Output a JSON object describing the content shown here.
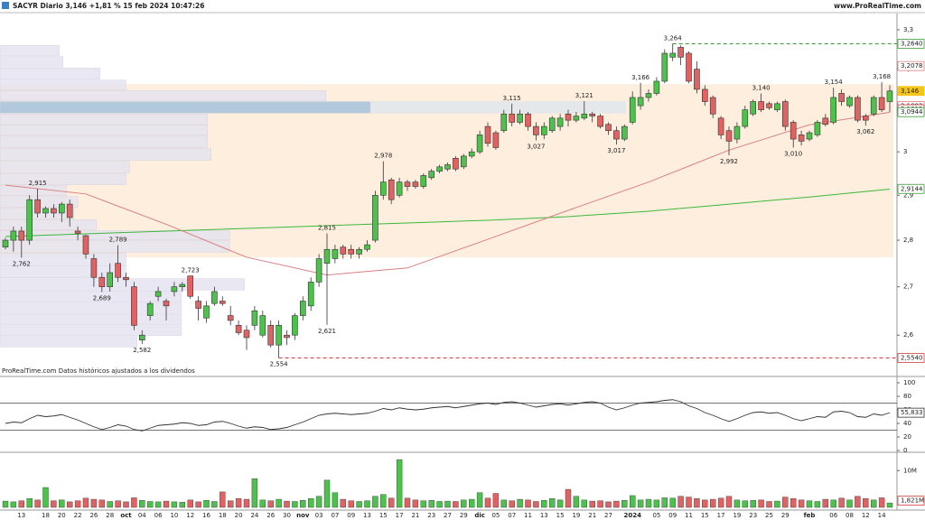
{
  "chart_data": {
    "type": "candlestick",
    "title": "SACYR Diario 3,146 +1,81 % 15 feb 2024 10:47:26",
    "source": "www.ProRealTime.com",
    "note": "ProRealTime.com  Datos históricos ajustados a los dividendos",
    "log_scale": true,
    "up_color": "#4cc24c",
    "down_color": "#e06262",
    "ylim": [
      2.521,
      3.342
    ],
    "yticks": [
      {
        "value": 2.6,
        "label": "2,6"
      },
      {
        "value": 2.7,
        "label": "2,7"
      },
      {
        "value": 2.8,
        "label": "2,8"
      },
      {
        "value": 2.9,
        "label": "2,9"
      },
      3,
      {
        "value": 3.1,
        "label": "3,1"
      },
      {
        "value": 3.2,
        "label": "3,2"
      },
      {
        "value": 3.3,
        "label": "3,3"
      }
    ],
    "categories": [
      null,
      null,
      "13",
      null,
      null,
      "18",
      null,
      "20",
      null,
      "22",
      null,
      "26",
      null,
      "28",
      null,
      "oct",
      null,
      "04",
      null,
      "06",
      null,
      "10",
      null,
      "12",
      null,
      "16",
      null,
      "18",
      null,
      "20",
      null,
      "24",
      null,
      "26",
      null,
      "30",
      null,
      "nov",
      null,
      "03",
      null,
      "07",
      null,
      "09",
      null,
      "13",
      null,
      "15",
      null,
      "17",
      null,
      "21",
      null,
      "23",
      null,
      "27",
      null,
      "29",
      null,
      "dic",
      null,
      "05",
      null,
      "07",
      null,
      "11",
      null,
      "13",
      null,
      "15",
      null,
      "19",
      null,
      "21",
      null,
      "27",
      null,
      null,
      "2024",
      null,
      null,
      "05",
      null,
      "09",
      null,
      "11",
      null,
      "15",
      null,
      "17",
      null,
      "19",
      null,
      "23",
      null,
      "25",
      null,
      "29",
      null,
      null,
      "feb",
      null,
      null,
      "06",
      null,
      "08",
      null,
      "12",
      null,
      "14",
      null
    ],
    "candles": [
      [
        2.785,
        2.805,
        2.78,
        2.8
      ],
      [
        2.8,
        2.83,
        2.775,
        2.82
      ],
      [
        2.82,
        2.83,
        2.762,
        2.8
      ],
      [
        2.8,
        2.9,
        2.79,
        2.89
      ],
      [
        2.89,
        2.915,
        2.85,
        2.86
      ],
      [
        2.86,
        2.875,
        2.85,
        2.87
      ],
      [
        2.87,
        2.88,
        2.85,
        2.86
      ],
      [
        2.86,
        2.885,
        2.84,
        2.88
      ],
      [
        2.88,
        2.89,
        2.83,
        2.85
      ],
      [
        2.82,
        2.83,
        2.8,
        2.815
      ],
      [
        2.81,
        2.812,
        2.76,
        2.77
      ],
      [
        2.76,
        2.77,
        2.7,
        2.72
      ],
      [
        2.72,
        2.73,
        2.689,
        2.7
      ],
      [
        2.7,
        2.75,
        2.69,
        2.73
      ],
      [
        2.75,
        2.789,
        2.71,
        2.72
      ],
      [
        2.72,
        2.73,
        2.7,
        2.715
      ],
      [
        2.7,
        2.71,
        2.61,
        2.62
      ],
      [
        2.59,
        2.61,
        2.582,
        2.6
      ],
      [
        2.64,
        2.67,
        2.63,
        2.665
      ],
      [
        2.68,
        2.7,
        2.67,
        2.69
      ],
      [
        2.67,
        2.675,
        2.63,
        2.66
      ],
      [
        2.69,
        2.71,
        2.68,
        2.7
      ],
      [
        2.7,
        2.71,
        2.69,
        2.705
      ],
      [
        2.723,
        2.723,
        2.675,
        2.68
      ],
      [
        2.67,
        2.68,
        2.63,
        2.655
      ],
      [
        2.635,
        2.67,
        2.625,
        2.66
      ],
      [
        2.665,
        2.7,
        2.66,
        2.69
      ],
      [
        2.67,
        2.68,
        2.66,
        2.665
      ],
      [
        2.64,
        2.66,
        2.62,
        2.63
      ],
      [
        2.62,
        2.63,
        2.6,
        2.605
      ],
      [
        2.61,
        2.62,
        2.57,
        2.595
      ],
      [
        2.62,
        2.66,
        2.61,
        2.65
      ],
      [
        2.6,
        2.65,
        2.595,
        2.64
      ],
      [
        2.62,
        2.63,
        2.575,
        2.58
      ],
      [
        2.58,
        2.63,
        2.554,
        2.62
      ],
      [
        2.6,
        2.61,
        2.58,
        2.595
      ],
      [
        2.6,
        2.645,
        2.59,
        2.64
      ],
      [
        2.64,
        2.68,
        2.63,
        2.67
      ],
      [
        2.66,
        2.72,
        2.65,
        2.71
      ],
      [
        2.71,
        2.77,
        2.7,
        2.76
      ],
      [
        2.75,
        2.815,
        2.621,
        2.78
      ],
      [
        2.76,
        2.79,
        2.75,
        2.78
      ],
      [
        2.785,
        2.79,
        2.76,
        2.77
      ],
      [
        2.78,
        2.79,
        2.76,
        2.77
      ],
      [
        2.77,
        2.785,
        2.76,
        2.78
      ],
      [
        2.78,
        2.8,
        2.775,
        2.79
      ],
      [
        2.8,
        2.91,
        2.795,
        2.9
      ],
      [
        2.9,
        2.978,
        2.89,
        2.93
      ],
      [
        2.935,
        2.94,
        2.88,
        2.89
      ],
      [
        2.9,
        2.94,
        2.895,
        2.93
      ],
      [
        2.93,
        2.935,
        2.91,
        2.92
      ],
      [
        2.93,
        2.935,
        2.915,
        2.92
      ],
      [
        2.92,
        2.95,
        2.915,
        2.945
      ],
      [
        2.94,
        2.96,
        2.935,
        2.955
      ],
      [
        2.955,
        2.97,
        2.95,
        2.965
      ],
      [
        2.96,
        2.975,
        2.955,
        2.97
      ],
      [
        2.985,
        2.99,
        2.955,
        2.96
      ],
      [
        2.965,
        2.995,
        2.96,
        2.99
      ],
      [
        2.99,
        3.008,
        2.985,
        3.0
      ],
      [
        3.0,
        3.05,
        2.995,
        3.04
      ],
      [
        3.06,
        3.07,
        3.012,
        3.02
      ],
      [
        3.045,
        3.05,
        3.005,
        3.01
      ],
      [
        3.05,
        3.1,
        3.045,
        3.09
      ],
      [
        3.09,
        3.115,
        3.06,
        3.07
      ],
      [
        3.07,
        3.1,
        3.065,
        3.09
      ],
      [
        3.09,
        3.095,
        3.05,
        3.06
      ],
      [
        3.06,
        3.07,
        3.027,
        3.04
      ],
      [
        3.04,
        3.07,
        3.03,
        3.06
      ],
      [
        3.05,
        3.085,
        3.045,
        3.08
      ],
      [
        3.06,
        3.09,
        3.05,
        3.08
      ],
      [
        3.09,
        3.1,
        3.06,
        3.075
      ],
      [
        3.075,
        3.095,
        3.07,
        3.085
      ],
      [
        3.08,
        3.121,
        3.075,
        3.09
      ],
      [
        3.09,
        3.095,
        3.07,
        3.085
      ],
      [
        3.085,
        3.09,
        3.055,
        3.06
      ],
      [
        3.065,
        3.07,
        3.04,
        3.05
      ],
      [
        3.05,
        3.06,
        3.017,
        3.03
      ],
      [
        3.03,
        3.065,
        3.025,
        3.06
      ],
      [
        3.07,
        3.145,
        3.065,
        3.13
      ],
      [
        3.11,
        3.166,
        3.1,
        3.13
      ],
      [
        3.13,
        3.15,
        3.12,
        3.14
      ],
      [
        3.14,
        3.18,
        3.135,
        3.17
      ],
      [
        3.17,
        3.25,
        3.165,
        3.24
      ],
      [
        3.23,
        3.264,
        3.22,
        3.24
      ],
      [
        3.255,
        3.26,
        3.21,
        3.23
      ],
      [
        3.24,
        3.245,
        3.165,
        3.17
      ],
      [
        3.2,
        3.22,
        3.14,
        3.15
      ],
      [
        3.15,
        3.16,
        3.11,
        3.12
      ],
      [
        3.13,
        3.135,
        3.08,
        3.09
      ],
      [
        3.08,
        3.085,
        3.03,
        3.04
      ],
      [
        3.05,
        3.06,
        2.992,
        3.025
      ],
      [
        3.03,
        3.07,
        3.02,
        3.06
      ],
      [
        3.06,
        3.11,
        3.055,
        3.1
      ],
      [
        3.09,
        3.125,
        3.085,
        3.12
      ],
      [
        3.12,
        3.14,
        3.095,
        3.1
      ],
      [
        3.115,
        3.12,
        3.1,
        3.105
      ],
      [
        3.1,
        3.12,
        3.095,
        3.115
      ],
      [
        3.12,
        3.125,
        3.05,
        3.06
      ],
      [
        3.07,
        3.075,
        3.01,
        3.03
      ],
      [
        3.04,
        3.05,
        3.015,
        3.025
      ],
      [
        3.03,
        3.05,
        3.025,
        3.045
      ],
      [
        3.04,
        3.075,
        3.035,
        3.07
      ],
      [
        3.08,
        3.09,
        3.06,
        3.065
      ],
      [
        3.07,
        3.154,
        3.065,
        3.13
      ],
      [
        3.14,
        3.15,
        3.11,
        3.12
      ],
      [
        3.11,
        3.135,
        3.105,
        3.13
      ],
      [
        3.13,
        3.135,
        3.07,
        3.075
      ],
      [
        3.085,
        3.09,
        3.062,
        3.075
      ],
      [
        3.09,
        3.135,
        3.085,
        3.13
      ],
      [
        3.13,
        3.168,
        3.095,
        3.1
      ],
      [
        3.12,
        3.16,
        3.095,
        3.146
      ]
    ],
    "extremes": [
      {
        "value": 2.915,
        "label": "2,915"
      },
      {
        "value": 2.762,
        "label": "2,762"
      },
      {
        "value": 2.789,
        "label": "2,789"
      },
      {
        "value": 2.689,
        "label": "2,689"
      },
      {
        "value": 2.723,
        "label": "2,723"
      },
      {
        "value": 2.582,
        "label": "2,582"
      },
      {
        "value": 2.554,
        "label": "2,554"
      },
      {
        "value": 2.815,
        "label": "2,815"
      },
      {
        "value": 2.621,
        "label": "2,621"
      },
      {
        "value": 2.978,
        "label": "2,978"
      },
      {
        "value": 3.115,
        "label": "3,115"
      },
      {
        "value": 3.027,
        "label": "3,027"
      },
      {
        "value": 3.121,
        "label": "3,121"
      },
      {
        "value": 3.017,
        "label": "3,017"
      },
      {
        "value": 3.166,
        "label": "3,166"
      },
      {
        "value": 3.264,
        "label": "3,264"
      },
      {
        "value": 2.992,
        "label": "2,992"
      },
      {
        "value": 3.14,
        "label": "3,140"
      },
      {
        "value": 3.01,
        "label": "3,010"
      },
      {
        "value": 3.154,
        "label": "3,154"
      },
      {
        "value": 3.062,
        "label": "3,062"
      },
      {
        "value": 3.168,
        "label": "3,168"
      }
    ],
    "price_markers": [
      {
        "value": 3.264,
        "label": "3,2640",
        "color": "#3a9a3a",
        "line": "dashed"
      },
      {
        "value": 3.2078,
        "label": "3,2078",
        "color": "#e08080"
      },
      {
        "value": 3.146,
        "label": "3,146",
        "color": "#f5c518"
      },
      {
        "value": 3.1093,
        "label": "3,1093",
        "color": "#e08080"
      },
      {
        "value": 3.1013,
        "label": "3,1013",
        "color": "#c04040"
      },
      {
        "value": 3.0944,
        "label": "3,0944",
        "color": "#3a9a3a"
      },
      {
        "value": 2.9144,
        "label": "2,9144",
        "color": "#3a9a3a"
      },
      {
        "value": 2.554,
        "label": "2,5540",
        "color": "#d04040",
        "line": "dashed"
      }
    ],
    "moving_averages": [
      {
        "color": "#3cb83c",
        "values": [
          2.808,
          2.814,
          2.82,
          2.826,
          2.832,
          2.838,
          2.844,
          2.852,
          2.864,
          2.88,
          2.896,
          2.914
        ]
      },
      {
        "color": "#d98080",
        "values": [
          2.923,
          2.903,
          2.835,
          2.763,
          2.725,
          2.74,
          2.802,
          2.866,
          2.93,
          3.004,
          3.064,
          3.094
        ]
      }
    ],
    "value_area": {
      "range": [
        2.763,
        3.163
      ],
      "color": "#fdeedd"
    },
    "volume_profile": {
      "color": "#e6e4f0",
      "poc_color": "#a9c4d8",
      "edges": [
        3.261,
        3.233,
        3.204,
        3.174,
        3.148,
        3.121,
        3.091,
        3.065,
        3.039,
        3.009,
        2.979,
        2.95,
        2.923,
        2.898,
        2.872,
        2.846,
        2.822,
        2.8,
        2.773,
        2.743,
        2.718,
        2.692,
        2.667,
        2.643,
        2.62,
        2.598,
        2.575
      ],
      "volumes": [
        16,
        17,
        27,
        34,
        88,
        100,
        56,
        56,
        56,
        57,
        35,
        34,
        18,
        21,
        20,
        26,
        62,
        62,
        34,
        34,
        66,
        49,
        49,
        49,
        49,
        37
      ]
    },
    "rsi": {
      "color": "#333333",
      "ylim": [
        0,
        100
      ],
      "yticks": [
        0,
        20,
        40,
        60,
        80,
        100
      ],
      "levels": [
        70,
        30
      ],
      "value_label": "55,833",
      "values": [
        40,
        42,
        41,
        47,
        52,
        50,
        51,
        53,
        49,
        45,
        40,
        35,
        31,
        34,
        38,
        36,
        31,
        29,
        33,
        37,
        38,
        39,
        41,
        40,
        37,
        38,
        42,
        43,
        40,
        36,
        33,
        35,
        34,
        31,
        32,
        34,
        38,
        42,
        47,
        52,
        54,
        55,
        54,
        53,
        54,
        55,
        58,
        62,
        60,
        63,
        61,
        60,
        61,
        63,
        64,
        65,
        63,
        65,
        67,
        69,
        70,
        68,
        71,
        72,
        70,
        67,
        64,
        66,
        68,
        69,
        67,
        69,
        71,
        72,
        70,
        64,
        60,
        63,
        67,
        70,
        71,
        72,
        74,
        75,
        72,
        66,
        62,
        56,
        52,
        47,
        43,
        47,
        52,
        56,
        57,
        55,
        56,
        52,
        47,
        44,
        47,
        50,
        49,
        57,
        58,
        56,
        50,
        49,
        54,
        52,
        55.833
      ]
    },
    "volume": {
      "ylim": [
        0,
        14
      ],
      "yticks": [
        {
          "value": 10,
          "label": "10M"
        }
      ],
      "markers": [
        {
          "value": 1.821,
          "label": "1,821M"
        }
      ],
      "values": [
        1.7,
        1.5,
        1.8,
        2.4,
        2.0,
        5.4,
        1.8,
        2.0,
        1.5,
        1.8,
        2.5,
        2.2,
        2.0,
        1.6,
        1.8,
        1.5,
        2.6,
        1.9,
        1.6,
        1.5,
        1.7,
        1.5,
        1.4,
        2.0,
        1.5,
        1.9,
        1.6,
        4.2,
        1.8,
        2.4,
        2.2,
        7.8,
        2.0,
        1.8,
        2.2,
        1.7,
        1.6,
        1.9,
        2.4,
        3.0,
        7.4,
        4.0,
        2.2,
        1.8,
        1.6,
        1.8,
        3.0,
        3.5,
        2.5,
        13.0,
        2.5,
        2.0,
        1.8,
        1.9,
        1.6,
        1.7,
        1.6,
        2.0,
        2.2,
        4.0,
        2.5,
        3.8,
        2.0,
        1.8,
        2.2,
        2.0,
        1.6,
        1.9,
        2.4,
        2.0,
        4.9,
        3.0,
        2.0,
        1.7,
        1.8,
        1.5,
        1.7,
        1.9,
        3.2,
        2.0,
        2.2,
        2.0,
        2.6,
        2.5,
        3.0,
        2.8,
        2.4,
        2.0,
        2.2,
        2.5,
        3.0,
        2.0,
        1.8,
        1.9,
        2.0,
        1.6,
        1.7,
        2.8,
        2.4,
        2.0,
        1.8,
        1.6,
        2.2,
        2.0,
        2.5,
        2.0,
        3.0,
        2.4,
        2.0,
        2.6,
        1.2
      ]
    }
  }
}
